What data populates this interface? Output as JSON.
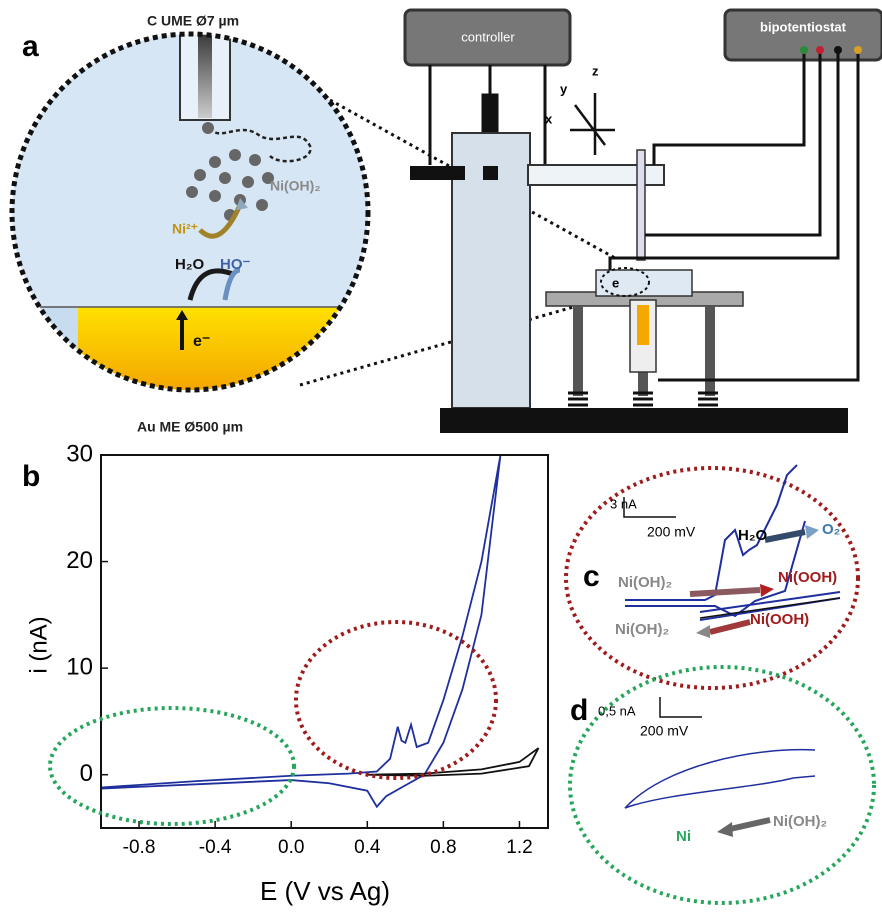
{
  "panels": {
    "a": "a",
    "b": "b",
    "c": "c",
    "d": "d"
  },
  "schematic": {
    "tip_label": "C UME Ø7 µm",
    "electrode_label": "Au ME Ø500 µm",
    "product": "Ni(OH)₂",
    "ion": "Ni²⁺",
    "water": "H₂O",
    "hydroxide": "HO⁻",
    "electron": "e⁻",
    "controller": "controller",
    "bipotentiostat": "bipotentiostat",
    "axis_x": "x",
    "axis_y": "y",
    "axis_z": "z",
    "cell_electron": "e"
  },
  "chart_data": {
    "type": "line",
    "xlabel": "E (V vs Ag)",
    "ylabel": "i (nA)",
    "xlim": [
      -1.0,
      1.35
    ],
    "ylim": [
      -5,
      30
    ],
    "xticks": [
      -0.8,
      -0.4,
      {
        "value": 0,
        "label": "0.0"
      },
      0.4,
      0.8,
      1.2
    ],
    "yticks": [
      0,
      10,
      20,
      30
    ],
    "series": [
      {
        "color": "#1f2f9e",
        "x": [
          -1.0,
          -0.5,
          0.0,
          0.3,
          0.45,
          0.52,
          0.56,
          0.58,
          0.6,
          0.63,
          0.66,
          0.72,
          0.8,
          0.9,
          1.0,
          1.05,
          1.1,
          1.08,
          1.0,
          0.9,
          0.8,
          0.7,
          0.6,
          0.5,
          0.45,
          0.4,
          0.2,
          0.0,
          -0.5,
          -1.0
        ],
        "values": [
          -1.2,
          -0.6,
          -0.1,
          0.1,
          0.3,
          1.5,
          4.5,
          3.2,
          3.0,
          4.7,
          2.6,
          3.0,
          7,
          13,
          20,
          25,
          30,
          27,
          15,
          8,
          3,
          0,
          -1,
          -2,
          -3,
          -1.5,
          -0.8,
          -0.5,
          -0.9,
          -1.3
        ]
      },
      {
        "color": "#111111",
        "x": [
          0.4,
          0.7,
          1.0,
          1.2,
          1.3,
          1.25,
          1.0,
          0.7,
          0.4
        ],
        "values": [
          0,
          0.1,
          0.5,
          1.2,
          2.5,
          0.8,
          0.1,
          -0.1,
          0
        ]
      }
    ]
  },
  "inset_c": {
    "scale_current": "3 nA",
    "scale_potential": "200 mV",
    "water": "H₂O",
    "oxygen": "O₂",
    "ox_reactant": "Ni(OH)₂",
    "ox_product": "Ni(OOH)",
    "red_product": "Ni(OH)₂",
    "red_reactant": "Ni(OOH)"
  },
  "inset_d": {
    "scale_current": "0,5 nA",
    "scale_potential": "200 mV",
    "metal": "Ni",
    "hydroxide": "Ni(OH)₂"
  }
}
